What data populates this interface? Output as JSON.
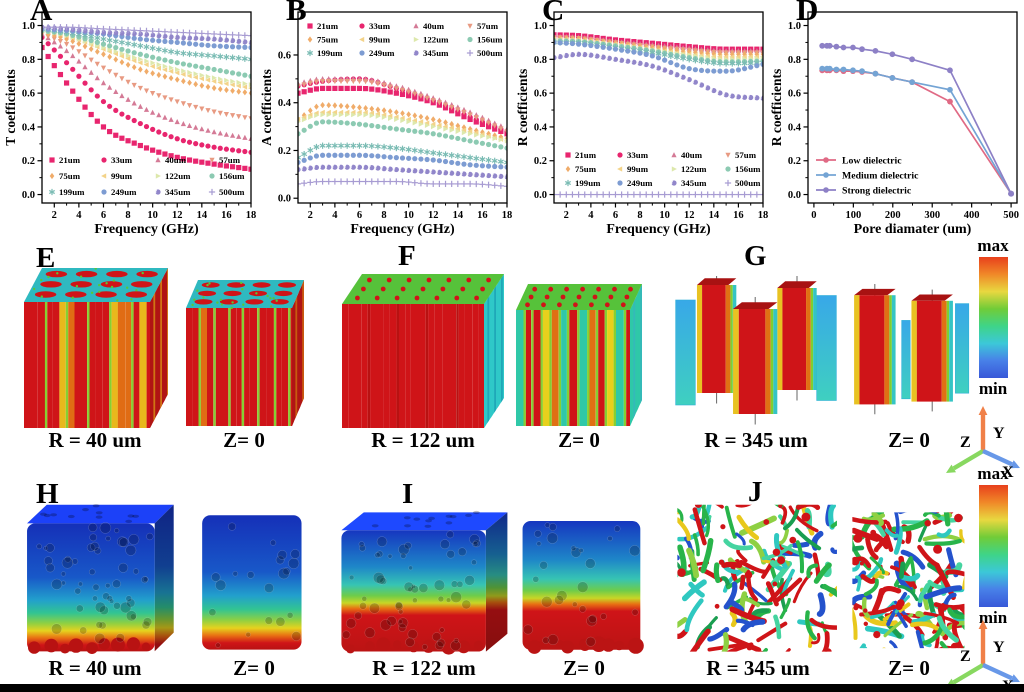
{
  "chart_data": [
    {
      "id": "A",
      "letter": "A",
      "type": "scatter",
      "xlabel": "Frequency (GHz)",
      "ylabel": "T coefficients",
      "xlim": [
        1,
        18
      ],
      "xticks": [
        2,
        4,
        6,
        8,
        10,
        12,
        14,
        16,
        18
      ],
      "ylim": [
        -0.05,
        1.08
      ],
      "yticks": [
        0.0,
        0.2,
        0.4,
        0.6,
        0.8,
        1.0
      ],
      "x": [
        1,
        3,
        6,
        9,
        12,
        15,
        18
      ],
      "legend_position": "bottom-left",
      "legend_columns": 4,
      "series": [
        {
          "name": "21um",
          "marker": "square",
          "color": "#e8256e",
          "values": [
            0.87,
            0.66,
            0.4,
            0.29,
            0.22,
            0.18,
            0.15
          ]
        },
        {
          "name": "33um",
          "marker": "circle",
          "color": "#e8256e",
          "values": [
            0.93,
            0.78,
            0.55,
            0.42,
            0.33,
            0.28,
            0.25
          ]
        },
        {
          "name": "40um",
          "marker": "triangle-up",
          "color": "#d47a96",
          "values": [
            0.95,
            0.85,
            0.66,
            0.52,
            0.43,
            0.37,
            0.33
          ]
        },
        {
          "name": "57um",
          "marker": "triangle-down",
          "color": "#e89a82",
          "values": [
            0.95,
            0.89,
            0.75,
            0.63,
            0.55,
            0.49,
            0.45
          ]
        },
        {
          "name": "75um",
          "marker": "diamond",
          "color": "#f0ac6a",
          "values": [
            0.96,
            0.92,
            0.83,
            0.74,
            0.68,
            0.63,
            0.6
          ]
        },
        {
          "name": "99um",
          "marker": "triangle-left",
          "color": "#f3d389",
          "values": [
            0.97,
            0.94,
            0.86,
            0.78,
            0.72,
            0.67,
            0.63
          ]
        },
        {
          "name": "122um",
          "marker": "triangle-right",
          "color": "#dde8ac",
          "values": [
            0.97,
            0.94,
            0.87,
            0.8,
            0.74,
            0.69,
            0.65
          ]
        },
        {
          "name": "156um",
          "marker": "circle",
          "color": "#8ccab2",
          "values": [
            0.97,
            0.95,
            0.89,
            0.83,
            0.78,
            0.74,
            0.7
          ]
        },
        {
          "name": "199um",
          "marker": "star",
          "color": "#7bbcb4",
          "values": [
            0.98,
            0.96,
            0.92,
            0.88,
            0.84,
            0.82,
            0.8
          ]
        },
        {
          "name": "249um",
          "marker": "circle",
          "color": "#7d9cd2",
          "values": [
            0.98,
            0.97,
            0.95,
            0.92,
            0.9,
            0.88,
            0.87
          ]
        },
        {
          "name": "345um",
          "marker": "sphere",
          "color": "#9186ca",
          "values": [
            0.99,
            0.98,
            0.96,
            0.95,
            0.93,
            0.92,
            0.9
          ]
        },
        {
          "name": "500um",
          "marker": "plus",
          "color": "#a79bd2",
          "values": [
            0.99,
            0.99,
            0.98,
            0.97,
            0.96,
            0.95,
            0.94
          ]
        }
      ]
    },
    {
      "id": "B",
      "letter": "B",
      "type": "scatter",
      "xlabel": "Frequency (GHz)",
      "ylabel": "A coefficients",
      "xlim": [
        1,
        18
      ],
      "xticks": [
        2,
        4,
        6,
        8,
        10,
        12,
        14,
        16,
        18
      ],
      "ylim": [
        -0.02,
        0.78
      ],
      "yticks": [
        0.0,
        0.2,
        0.4,
        0.6
      ],
      "x": [
        1,
        3,
        6,
        9,
        12,
        15,
        18
      ],
      "legend_position": "top-left",
      "legend_columns": 4,
      "series": [
        {
          "name": "21um",
          "marker": "square",
          "color": "#e8256e",
          "values": [
            0.44,
            0.46,
            0.46,
            0.44,
            0.4,
            0.33,
            0.27
          ]
        },
        {
          "name": "33um",
          "marker": "circle",
          "color": "#e8256e",
          "values": [
            0.47,
            0.49,
            0.5,
            0.46,
            0.41,
            0.34,
            0.28
          ]
        },
        {
          "name": "40um",
          "marker": "triangle-up",
          "color": "#d47a96",
          "values": [
            0.48,
            0.5,
            0.5,
            0.47,
            0.42,
            0.36,
            0.29
          ]
        },
        {
          "name": "57um",
          "marker": "triangle-down",
          "color": "#e89a82",
          "values": [
            0.47,
            0.49,
            0.49,
            0.46,
            0.41,
            0.35,
            0.28
          ]
        },
        {
          "name": "75um",
          "marker": "diamond",
          "color": "#f0ac6a",
          "values": [
            0.33,
            0.39,
            0.38,
            0.36,
            0.33,
            0.29,
            0.25
          ]
        },
        {
          "name": "99um",
          "marker": "triangle-left",
          "color": "#f3d389",
          "values": [
            0.33,
            0.36,
            0.36,
            0.34,
            0.31,
            0.28,
            0.24
          ]
        },
        {
          "name": "122um",
          "marker": "triangle-right",
          "color": "#dde8ac",
          "values": [
            0.32,
            0.35,
            0.35,
            0.33,
            0.3,
            0.27,
            0.24
          ]
        },
        {
          "name": "156um",
          "marker": "circle",
          "color": "#8ccab2",
          "values": [
            0.27,
            0.32,
            0.31,
            0.29,
            0.27,
            0.24,
            0.21
          ]
        },
        {
          "name": "199um",
          "marker": "star",
          "color": "#7bbcb4",
          "values": [
            0.17,
            0.22,
            0.22,
            0.21,
            0.19,
            0.17,
            0.15
          ]
        },
        {
          "name": "249um",
          "marker": "circle",
          "color": "#7d9cd2",
          "values": [
            0.15,
            0.18,
            0.18,
            0.17,
            0.16,
            0.14,
            0.13
          ]
        },
        {
          "name": "345um",
          "marker": "sphere",
          "color": "#9186ca",
          "values": [
            0.12,
            0.13,
            0.13,
            0.12,
            0.11,
            0.1,
            0.09
          ]
        },
        {
          "name": "500um",
          "marker": "plus",
          "color": "#a79bd2",
          "values": [
            0.06,
            0.07,
            0.07,
            0.07,
            0.06,
            0.06,
            0.05
          ]
        }
      ]
    },
    {
      "id": "C",
      "letter": "C",
      "type": "scatter",
      "xlabel": "Frequency (GHz)",
      "ylabel": "R coefficients",
      "xlim": [
        1,
        18
      ],
      "xticks": [
        2,
        4,
        6,
        8,
        10,
        12,
        14,
        16,
        18
      ],
      "ylim": [
        -0.05,
        1.08
      ],
      "yticks": [
        0.0,
        0.2,
        0.4,
        0.6,
        0.8,
        1.0
      ],
      "x": [
        1,
        3,
        6,
        9,
        12,
        15,
        18
      ],
      "legend_position": "bottom-left",
      "legend_columns": 4,
      "series": [
        {
          "name": "21um",
          "marker": "square",
          "color": "#e8256e",
          "values": [
            0.945,
            0.94,
            0.915,
            0.895,
            0.875,
            0.86,
            0.86
          ]
        },
        {
          "name": "33um",
          "marker": "circle",
          "color": "#e8256e",
          "values": [
            0.94,
            0.935,
            0.91,
            0.89,
            0.87,
            0.855,
            0.855
          ]
        },
        {
          "name": "40um",
          "marker": "triangle-up",
          "color": "#d47a96",
          "values": [
            0.935,
            0.93,
            0.905,
            0.885,
            0.865,
            0.85,
            0.85
          ]
        },
        {
          "name": "57um",
          "marker": "triangle-down",
          "color": "#e89a82",
          "values": [
            0.93,
            0.925,
            0.9,
            0.875,
            0.855,
            0.84,
            0.84
          ]
        },
        {
          "name": "75um",
          "marker": "diamond",
          "color": "#f0ac6a",
          "values": [
            0.925,
            0.92,
            0.895,
            0.87,
            0.845,
            0.83,
            0.83
          ]
        },
        {
          "name": "99um",
          "marker": "triangle-left",
          "color": "#f3d389",
          "values": [
            0.92,
            0.915,
            0.89,
            0.86,
            0.83,
            0.815,
            0.815
          ]
        },
        {
          "name": "122um",
          "marker": "triangle-right",
          "color": "#dde8ac",
          "values": [
            0.915,
            0.91,
            0.885,
            0.855,
            0.825,
            0.8,
            0.805
          ]
        },
        {
          "name": "156um",
          "marker": "circle",
          "color": "#8ccab2",
          "values": [
            0.91,
            0.905,
            0.88,
            0.85,
            0.81,
            0.785,
            0.79
          ]
        },
        {
          "name": "199um",
          "marker": "star",
          "color": "#7bbcb4",
          "values": [
            0.9,
            0.9,
            0.87,
            0.84,
            0.8,
            0.775,
            0.78
          ]
        },
        {
          "name": "249um",
          "marker": "circle",
          "color": "#7d9cd2",
          "values": [
            0.9,
            0.89,
            0.86,
            0.82,
            0.745,
            0.73,
            0.77
          ]
        },
        {
          "name": "345um",
          "marker": "sphere",
          "color": "#9186ca",
          "values": [
            0.81,
            0.83,
            0.8,
            0.76,
            0.68,
            0.59,
            0.57
          ]
        },
        {
          "name": "500um",
          "marker": "plus",
          "color": "#a79bd2",
          "values": [
            0,
            0,
            0,
            0,
            0,
            0,
            0
          ]
        }
      ]
    },
    {
      "id": "D",
      "letter": "D",
      "type": "line",
      "xlabel": "Pore diamater (um)",
      "ylabel": "R coefficients",
      "xlim": [
        -15,
        515
      ],
      "xticks": [
        0,
        100,
        200,
        300,
        400,
        500
      ],
      "ylim": [
        -0.05,
        1.08
      ],
      "yticks": [
        0.0,
        0.2,
        0.4,
        0.6,
        0.8,
        1.0
      ],
      "x": [
        21,
        33,
        40,
        57,
        75,
        99,
        122,
        156,
        199,
        249,
        345,
        500
      ],
      "legend_position": "bottom-left",
      "legend_columns": 1,
      "series": [
        {
          "name": "Low dielectric",
          "marker": "circle",
          "color": "#e06a85",
          "values": [
            0.735,
            0.735,
            0.735,
            0.735,
            0.73,
            0.73,
            0.725,
            0.715,
            0.69,
            0.665,
            0.55,
            0.005
          ]
        },
        {
          "name": "Medium dielectric",
          "marker": "circle",
          "color": "#74a4d4",
          "values": [
            0.745,
            0.745,
            0.745,
            0.74,
            0.74,
            0.735,
            0.73,
            0.715,
            0.69,
            0.665,
            0.62,
            0.005
          ]
        },
        {
          "name": "Strong  dielectric",
          "marker": "circle",
          "color": "#8d80c6",
          "values": [
            0.88,
            0.88,
            0.88,
            0.875,
            0.87,
            0.87,
            0.86,
            0.85,
            0.83,
            0.8,
            0.735,
            0.005
          ]
        }
      ]
    }
  ],
  "render_rows": [
    {
      "colorbar": {
        "max": "max",
        "min": "min"
      },
      "panels": [
        {
          "letter": "E",
          "left_label": "R = 40 um",
          "right_label": "Z= 0",
          "variants": [
            "col-red-mixed",
            "col-red-sep"
          ]
        },
        {
          "letter": "F",
          "left_label": "R = 122 um",
          "right_label": "Z= 0",
          "variants": [
            "col-solid-red",
            "col-rainbow"
          ]
        },
        {
          "letter": "G",
          "left_label": "R = 345 um",
          "right_label": "Z= 0",
          "variants": [
            "slabs-3d",
            "slabs-2"
          ]
        }
      ]
    },
    {
      "colorbar": {
        "max": "max",
        "min": "min"
      },
      "panels": [
        {
          "letter": "H",
          "left_label": "R = 40 um",
          "right_label": "Z= 0",
          "variants": [
            "foam-40",
            "foam-40-flat"
          ]
        },
        {
          "letter": "I",
          "left_label": "R = 122 um",
          "right_label": "Z= 0",
          "variants": [
            "foam-122",
            "foam-122-flat"
          ]
        },
        {
          "letter": "J",
          "left_label": "R = 345 um",
          "right_label": "Z= 0",
          "variants": [
            "net-a",
            "net-b"
          ]
        }
      ]
    }
  ],
  "triad": {
    "x": "X",
    "y": "Y",
    "z": "Z",
    "x_color": "#6898e8",
    "y_color": "#f08048",
    "z_color": "#88d860"
  },
  "colorbar_stops": [
    "#e8401c",
    "#f08828",
    "#e8d840",
    "#70cc38",
    "#3ed488",
    "#3cc8d8",
    "#4880e8",
    "#3858d8"
  ]
}
